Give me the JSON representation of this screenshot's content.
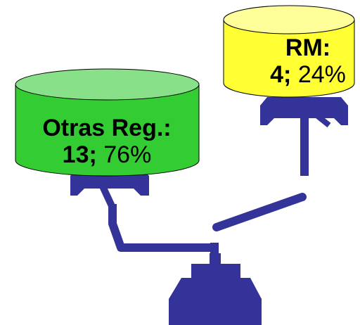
{
  "left": {
    "title": "Otras Reg.:",
    "count": "13;",
    "share": "76%"
  },
  "right": {
    "title": "RM:",
    "count": "4;",
    "share": "24%"
  }
}
